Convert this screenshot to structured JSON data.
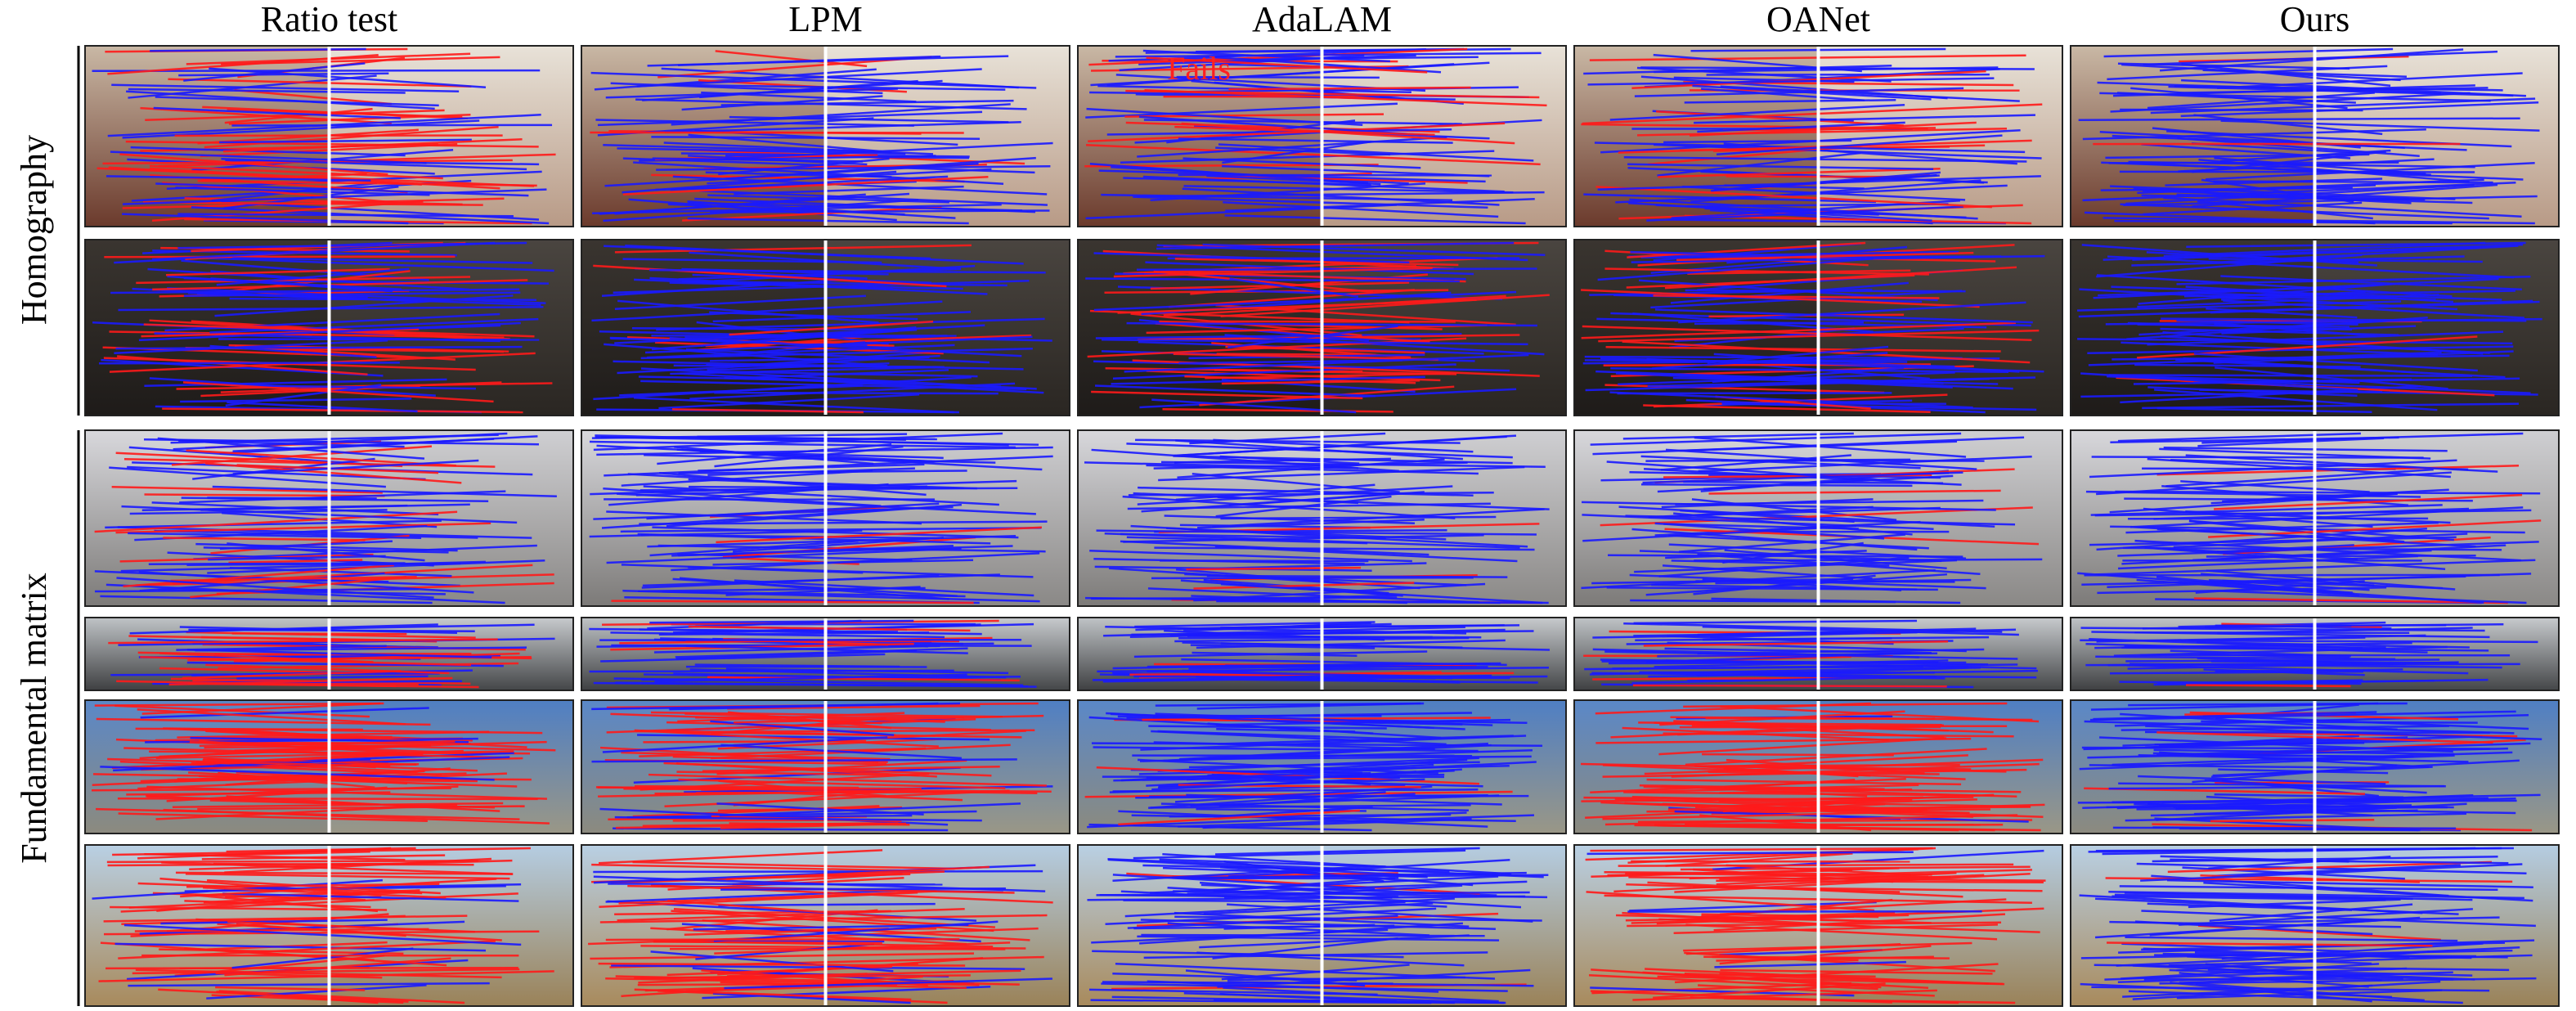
{
  "columns": [
    "Ratio test",
    "LPM",
    "AdaLAM",
    "OANet",
    "Ours"
  ],
  "row_groups": [
    "Homography",
    "Fundamental matrix"
  ],
  "annotation": "Fails"
}
